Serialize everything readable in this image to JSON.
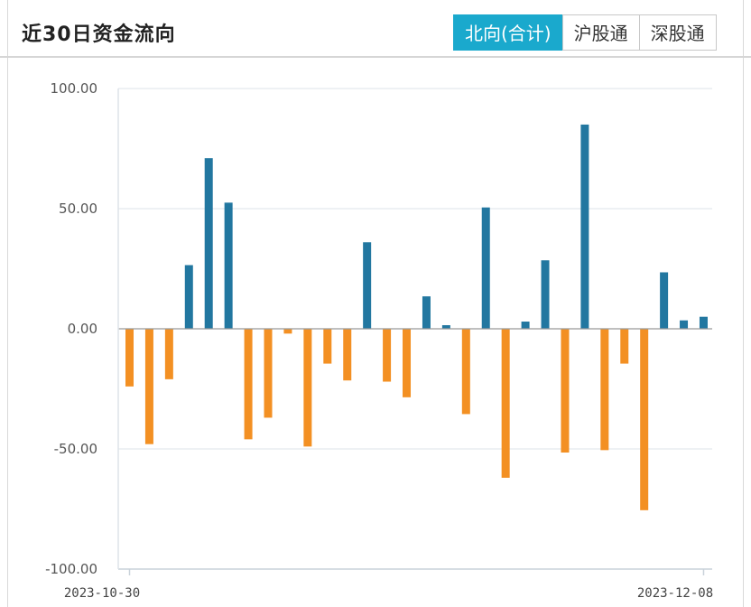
{
  "header": {
    "title": "近30日资金流向",
    "tabs": [
      {
        "label": "北向(合计)",
        "active": true
      },
      {
        "label": "沪股通",
        "active": false
      },
      {
        "label": "深股通",
        "active": false
      }
    ]
  },
  "colors": {
    "positive": "#2277a0",
    "negative": "#f39023",
    "tab_active": "#1aa9cd",
    "grid": "#dde3e8",
    "axis": "#999999"
  },
  "chart_data": {
    "type": "bar",
    "title": "",
    "xlabel": "",
    "ylabel": "",
    "ylim": [
      -100,
      100
    ],
    "y_ticks": [
      "100.00",
      "50.00",
      "0.00",
      "-50.00",
      "-100.00"
    ],
    "x_tick_labels": [
      "2023-10-30",
      "2023-12-08"
    ],
    "grid": true,
    "values": [
      -24,
      -48,
      -21,
      26.5,
      71,
      52.5,
      -46,
      -37,
      -2,
      -49,
      -14.5,
      -21.5,
      36,
      -22,
      -28.5,
      13.5,
      1.5,
      -35.5,
      50.5,
      -62,
      3,
      28.5,
      -51.5,
      85,
      -50.5,
      -14.5,
      -75.5,
      23.5,
      3.5,
      5
    ]
  }
}
